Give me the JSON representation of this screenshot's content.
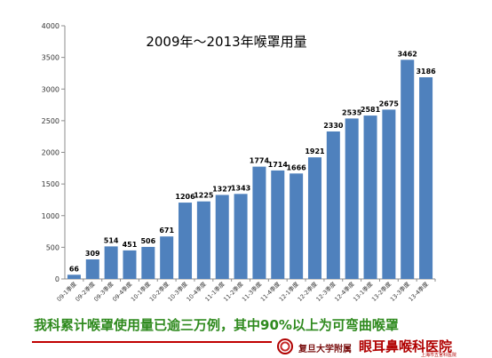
{
  "chart_data": {
    "type": "bar",
    "title": "2009年～2013年喉罩用量",
    "categories": [
      "09-1季度",
      "09-2季度",
      "09-3季度",
      "09-4季度",
      "10-1季度",
      "10-2季度",
      "10-3季度",
      "10-4季度",
      "11-1季度",
      "11-2季度",
      "11-3季度",
      "11-4季度",
      "12-1季度",
      "12-2季度",
      "12-3季度",
      "12-4季度",
      "13-1季度",
      "13-2季度",
      "13-3季度",
      "13-4季度"
    ],
    "values": [
      66,
      309,
      514,
      451,
      506,
      671,
      1206,
      1225,
      1327,
      1343,
      1774,
      1714,
      1666,
      1921,
      2330,
      2535,
      2581,
      2675,
      3462,
      3186
    ],
    "y_ticks": [
      0,
      500,
      1000,
      1500,
      2000,
      2500,
      3000,
      3500,
      4000
    ],
    "ylim": [
      0,
      4000
    ],
    "grid": false,
    "bar_color": "#4f81bd"
  },
  "caption": "我科累计喉罩使用量已逾三万例，其中90%以上为可弯曲喉罩",
  "footer": {
    "institution": "复旦大学附属",
    "hospital": "眼耳鼻喉科医院",
    "subtitle": "上海市五官科医院",
    "logo": "hospital-logo"
  }
}
